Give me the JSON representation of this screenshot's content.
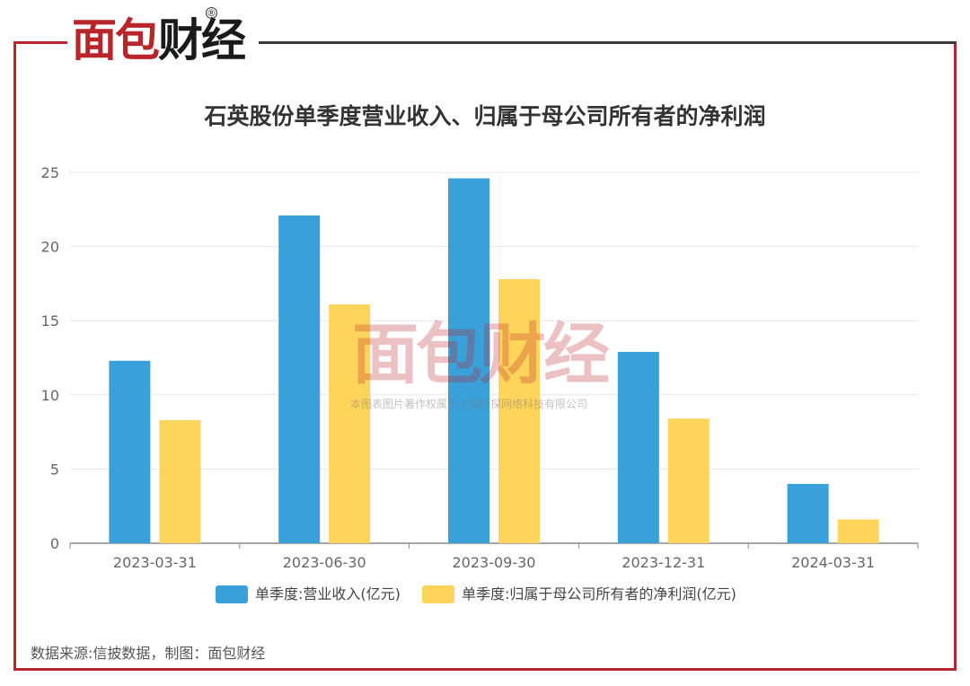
{
  "brand": {
    "logo_part1": "面包",
    "logo_part2": "财经",
    "registered": "®"
  },
  "watermark": {
    "logo_part1": "面包",
    "logo_part2": "财经",
    "text": "本图表图片著作权属于上海妙探网络科技有限公司"
  },
  "source_note": "数据来源:信披数据，制图：面包财经",
  "colors": {
    "frame": "#b8262b",
    "series1": "#3aa0d9",
    "series2": "#ffd45a",
    "grid": "#e3e6f0",
    "axis": "#666666"
  },
  "chart_data": {
    "type": "bar",
    "title": "石英股份单季度营业收入、归属于母公司所有者的净利润",
    "categories": [
      "2023-03-31",
      "2023-06-30",
      "2023-09-30",
      "2023-12-31",
      "2024-03-31"
    ],
    "series": [
      {
        "name": "单季度:营业收入(亿元)",
        "values": [
          12.3,
          22.1,
          24.6,
          12.9,
          4.0
        ]
      },
      {
        "name": "单季度:归属于母公司所有者的净利润(亿元)",
        "values": [
          8.3,
          16.1,
          17.8,
          8.4,
          1.6
        ]
      }
    ],
    "ylim": [
      0,
      25
    ],
    "yticks": [
      0,
      5,
      10,
      15,
      20,
      25
    ],
    "grid": true,
    "legend_position": "bottom"
  }
}
